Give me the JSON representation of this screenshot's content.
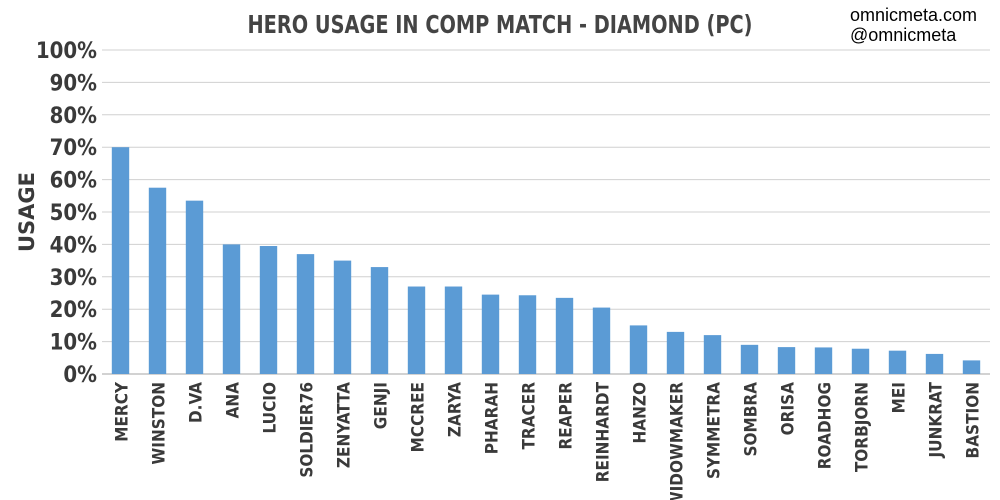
{
  "credit": {
    "site": "omnicmeta.com",
    "handle": "@omnicmeta"
  },
  "chart_data": {
    "type": "bar",
    "title": "HERO USAGE IN COMP MATCH - DIAMOND (PC)",
    "xlabel": "",
    "ylabel": "USAGE",
    "ylim": [
      0,
      100
    ],
    "yticks": [
      "0%",
      "10%",
      "20%",
      "30%",
      "40%",
      "50%",
      "60%",
      "70%",
      "80%",
      "90%",
      "100%"
    ],
    "grid": true,
    "bar_color": "#5b9bd5",
    "categories": [
      "MERCY",
      "WINSTON",
      "D.VA",
      "ANA",
      "LUCIO",
      "SOLDIER76",
      "ZENYATTA",
      "GENJI",
      "MCCREE",
      "ZARYA",
      "PHARAH",
      "TRACER",
      "REAPER",
      "REINHARDT",
      "HANZO",
      "WIDOWMAKER",
      "SYMMETRA",
      "SOMBRA",
      "ORISA",
      "ROADHOG",
      "TORBJORN",
      "MEI",
      "JUNKRAT",
      "BASTION"
    ],
    "values": [
      70,
      57.5,
      53.5,
      40,
      39.5,
      37,
      35,
      33,
      27,
      27,
      24.5,
      24.3,
      23.5,
      20.5,
      15,
      13,
      12,
      9,
      8.3,
      8.2,
      7.8,
      7.2,
      6.2,
      4.2
    ]
  }
}
